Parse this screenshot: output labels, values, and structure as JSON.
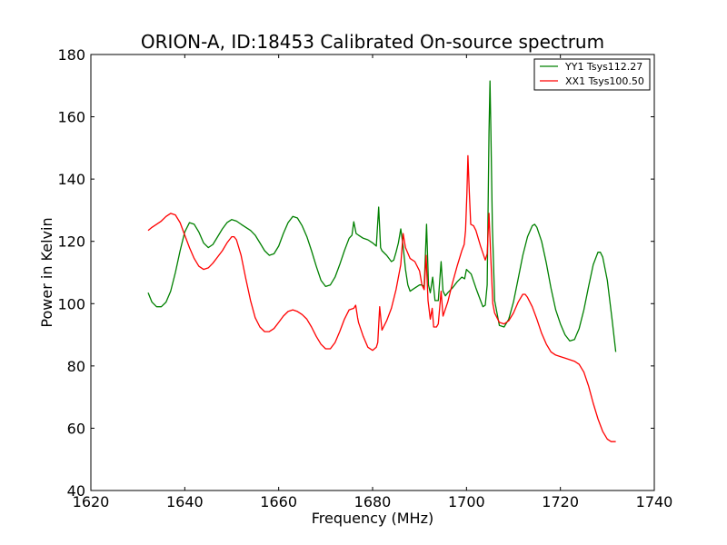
{
  "chart_data": {
    "type": "line",
    "title": "ORION-A, ID:18453 Calibrated On-source spectrum",
    "xlabel": "Frequency (MHz)",
    "ylabel": "Power in Kelvin",
    "xlim": [
      1620,
      1740
    ],
    "ylim": [
      40,
      180
    ],
    "xticks": [
      1620,
      1640,
      1660,
      1680,
      1700,
      1720,
      1740
    ],
    "yticks": [
      40,
      60,
      80,
      100,
      120,
      140,
      160,
      180
    ],
    "grid": false,
    "legend_position": "top-right",
    "series": [
      {
        "name": "YY1 Tsys112.27",
        "color": "#008000",
        "points": [
          [
            1632.2,
            103.5
          ],
          [
            1633,
            100.5
          ],
          [
            1634,
            99
          ],
          [
            1635,
            99
          ],
          [
            1636,
            100.5
          ],
          [
            1637,
            104
          ],
          [
            1638,
            110
          ],
          [
            1639,
            117
          ],
          [
            1640,
            123
          ],
          [
            1641,
            126
          ],
          [
            1642,
            125.5
          ],
          [
            1643,
            123
          ],
          [
            1644,
            119.5
          ],
          [
            1645,
            118
          ],
          [
            1646,
            119
          ],
          [
            1647,
            121.5
          ],
          [
            1648,
            124
          ],
          [
            1649,
            126
          ],
          [
            1650,
            127
          ],
          [
            1651,
            126.5
          ],
          [
            1652,
            125.5
          ],
          [
            1653,
            124.5
          ],
          [
            1654,
            123.5
          ],
          [
            1655,
            122
          ],
          [
            1656,
            119.5
          ],
          [
            1657,
            117
          ],
          [
            1658,
            115.5
          ],
          [
            1659,
            116
          ],
          [
            1660,
            118.5
          ],
          [
            1661,
            122.5
          ],
          [
            1662,
            126
          ],
          [
            1663,
            128
          ],
          [
            1664,
            127.5
          ],
          [
            1665,
            125
          ],
          [
            1666,
            121.5
          ],
          [
            1667,
            117
          ],
          [
            1668,
            112
          ],
          [
            1669,
            107.5
          ],
          [
            1670,
            105.5
          ],
          [
            1671,
            106
          ],
          [
            1672,
            108.5
          ],
          [
            1673,
            112.5
          ],
          [
            1674,
            117
          ],
          [
            1675,
            121
          ],
          [
            1675.6,
            122
          ],
          [
            1676,
            126.3
          ],
          [
            1676.5,
            122.5
          ],
          [
            1677,
            122
          ],
          [
            1678,
            121
          ],
          [
            1679,
            120.5
          ],
          [
            1680,
            119.5
          ],
          [
            1680.8,
            118.5
          ],
          [
            1681.3,
            131
          ],
          [
            1681.7,
            118
          ],
          [
            1682,
            117
          ],
          [
            1683,
            115.5
          ],
          [
            1684,
            113.5
          ],
          [
            1684.5,
            114
          ],
          [
            1685,
            116.5
          ],
          [
            1685.5,
            119.5
          ],
          [
            1686,
            124
          ],
          [
            1686.5,
            118.5
          ],
          [
            1687,
            111
          ],
          [
            1687.5,
            106
          ],
          [
            1688,
            104
          ],
          [
            1689,
            105
          ],
          [
            1690,
            106
          ],
          [
            1690.5,
            106
          ],
          [
            1691,
            105.5
          ],
          [
            1691.5,
            125.5
          ],
          [
            1691.9,
            106
          ],
          [
            1692.3,
            103.5
          ],
          [
            1692.8,
            108.5
          ],
          [
            1693.3,
            101
          ],
          [
            1694,
            101
          ],
          [
            1694.6,
            113.5
          ],
          [
            1695,
            104
          ],
          [
            1695.5,
            102.5
          ],
          [
            1696,
            103.5
          ],
          [
            1697,
            105
          ],
          [
            1698,
            107
          ],
          [
            1699,
            108.5
          ],
          [
            1699.6,
            108
          ],
          [
            1700,
            111
          ],
          [
            1701,
            109.5
          ],
          [
            1702,
            105
          ],
          [
            1703,
            101
          ],
          [
            1703.5,
            99
          ],
          [
            1704,
            99.5
          ],
          [
            1704.4,
            106
          ],
          [
            1704.8,
            155
          ],
          [
            1705,
            171.5
          ],
          [
            1705.2,
            155
          ],
          [
            1705.5,
            125
          ],
          [
            1706,
            101
          ],
          [
            1707,
            93
          ],
          [
            1708,
            92.5
          ],
          [
            1709,
            95
          ],
          [
            1710,
            100.5
          ],
          [
            1711,
            108
          ],
          [
            1712,
            115.5
          ],
          [
            1713,
            121.5
          ],
          [
            1714,
            125
          ],
          [
            1714.5,
            125.5
          ],
          [
            1715,
            124.5
          ],
          [
            1716,
            120
          ],
          [
            1717,
            113
          ],
          [
            1718,
            105
          ],
          [
            1719,
            98
          ],
          [
            1720,
            93.5
          ],
          [
            1721,
            90
          ],
          [
            1722,
            88
          ],
          [
            1723,
            88.5
          ],
          [
            1724,
            92
          ],
          [
            1725,
            98
          ],
          [
            1726,
            105.5
          ],
          [
            1727,
            112.5
          ],
          [
            1728,
            116.5
          ],
          [
            1728.5,
            116.5
          ],
          [
            1729,
            115
          ],
          [
            1730,
            107.5
          ],
          [
            1731,
            95
          ],
          [
            1731.8,
            84.5
          ]
        ]
      },
      {
        "name": "XX1 Tsys100.50",
        "color": "#ff0000",
        "points": [
          [
            1632.2,
            123.5
          ],
          [
            1633,
            124.5
          ],
          [
            1634,
            125.5
          ],
          [
            1635,
            126.5
          ],
          [
            1636,
            128
          ],
          [
            1637,
            129
          ],
          [
            1638,
            128.5
          ],
          [
            1639,
            126
          ],
          [
            1640,
            122
          ],
          [
            1641,
            118
          ],
          [
            1642,
            114.5
          ],
          [
            1643,
            112
          ],
          [
            1644,
            111
          ],
          [
            1645,
            111.5
          ],
          [
            1646,
            113
          ],
          [
            1647,
            115
          ],
          [
            1648,
            117
          ],
          [
            1649,
            119.5
          ],
          [
            1650,
            121.5
          ],
          [
            1650.5,
            121.5
          ],
          [
            1651,
            120.5
          ],
          [
            1652,
            115.5
          ],
          [
            1653,
            108
          ],
          [
            1654,
            101
          ],
          [
            1655,
            95.5
          ],
          [
            1656,
            92.5
          ],
          [
            1657,
            91
          ],
          [
            1658,
            91
          ],
          [
            1659,
            92
          ],
          [
            1660,
            94
          ],
          [
            1661,
            96
          ],
          [
            1662,
            97.5
          ],
          [
            1663,
            98
          ],
          [
            1664,
            97.5
          ],
          [
            1665,
            96.5
          ],
          [
            1666,
            95
          ],
          [
            1667,
            92.5
          ],
          [
            1668,
            89.5
          ],
          [
            1669,
            87
          ],
          [
            1670,
            85.5
          ],
          [
            1671,
            85.5
          ],
          [
            1672,
            87.5
          ],
          [
            1673,
            91
          ],
          [
            1674,
            95
          ],
          [
            1675,
            98
          ],
          [
            1676,
            98.5
          ],
          [
            1676.4,
            99.5
          ],
          [
            1676.8,
            95.5
          ],
          [
            1677,
            94
          ],
          [
            1678,
            89.5
          ],
          [
            1679,
            86
          ],
          [
            1680,
            85
          ],
          [
            1680.8,
            86
          ],
          [
            1681.1,
            87.5
          ],
          [
            1681.5,
            99
          ],
          [
            1682,
            91.5
          ],
          [
            1683,
            94.5
          ],
          [
            1684,
            98.5
          ],
          [
            1685,
            104.5
          ],
          [
            1686,
            112.5
          ],
          [
            1686.5,
            122.5
          ],
          [
            1687,
            118
          ],
          [
            1688,
            114.5
          ],
          [
            1689,
            113.5
          ],
          [
            1690,
            110.5
          ],
          [
            1690.5,
            106
          ],
          [
            1691,
            104.5
          ],
          [
            1691.4,
            115.5
          ],
          [
            1691.8,
            101
          ],
          [
            1692.3,
            95
          ],
          [
            1692.7,
            98.5
          ],
          [
            1693,
            92.5
          ],
          [
            1693.6,
            92.5
          ],
          [
            1694,
            93.5
          ],
          [
            1694.6,
            104
          ],
          [
            1695,
            96
          ],
          [
            1696,
            100.5
          ],
          [
            1697,
            106.5
          ],
          [
            1698,
            112
          ],
          [
            1699,
            117
          ],
          [
            1699.5,
            119
          ],
          [
            1699.8,
            123.5
          ],
          [
            1700.1,
            135.5
          ],
          [
            1700.3,
            147.5
          ],
          [
            1700.6,
            136
          ],
          [
            1700.9,
            125.5
          ],
          [
            1701.5,
            125
          ],
          [
            1702,
            123.5
          ],
          [
            1703,
            118.5
          ],
          [
            1704,
            114
          ],
          [
            1704.4,
            116
          ],
          [
            1704.8,
            129
          ],
          [
            1705.2,
            114
          ],
          [
            1705.6,
            100
          ],
          [
            1706,
            97
          ],
          [
            1707,
            94
          ],
          [
            1708,
            93.5
          ],
          [
            1709,
            94.5
          ],
          [
            1710,
            97
          ],
          [
            1711,
            100.5
          ],
          [
            1712,
            103
          ],
          [
            1712.5,
            103
          ],
          [
            1713,
            102
          ],
          [
            1714,
            99
          ],
          [
            1715,
            95
          ],
          [
            1716,
            90.5
          ],
          [
            1717,
            87
          ],
          [
            1718,
            84.5
          ],
          [
            1719,
            83.5
          ],
          [
            1720,
            83
          ],
          [
            1721,
            82.5
          ],
          [
            1722,
            82
          ],
          [
            1723,
            81.5
          ],
          [
            1724,
            80.5
          ],
          [
            1725,
            78
          ],
          [
            1726,
            73.5
          ],
          [
            1727,
            68
          ],
          [
            1728,
            63
          ],
          [
            1729,
            59
          ],
          [
            1730,
            56.5
          ],
          [
            1730.8,
            55.7
          ],
          [
            1731.8,
            55.7
          ]
        ]
      }
    ]
  }
}
